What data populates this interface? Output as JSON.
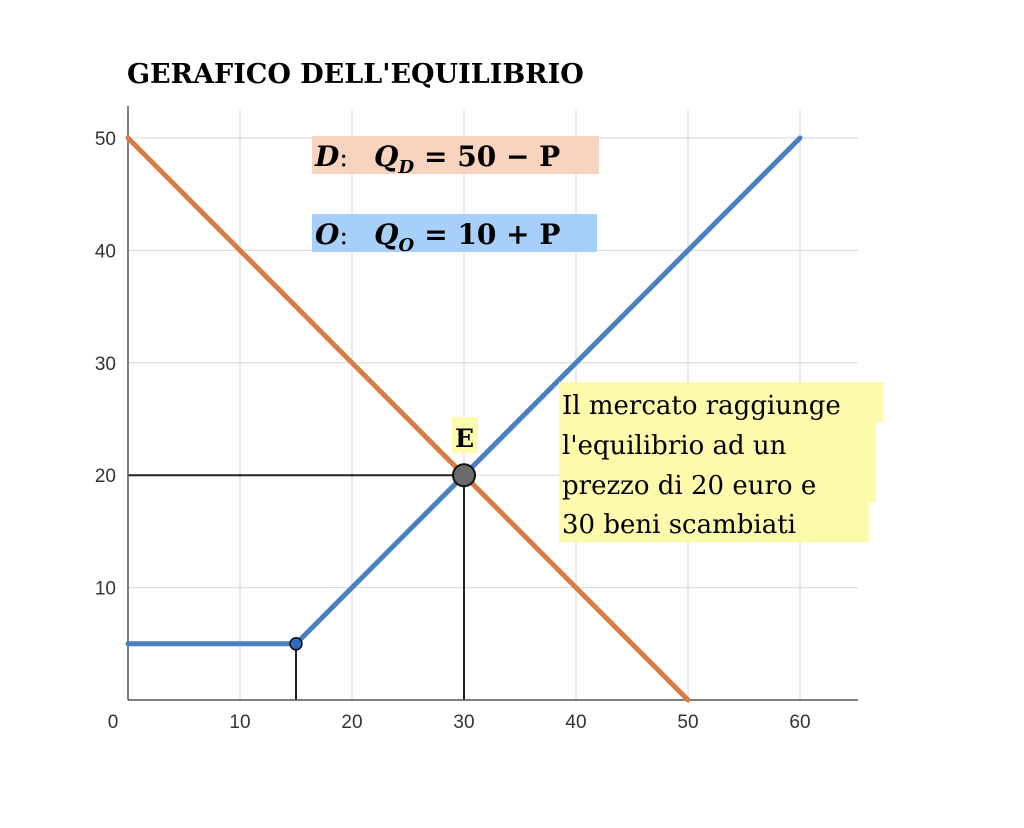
{
  "chart_data": {
    "type": "line",
    "title": "GERAFICO DELL'EQUILIBRIO",
    "xlim": [
      0,
      65
    ],
    "ylim": [
      0,
      50
    ],
    "x_ticks": [
      0,
      10,
      20,
      30,
      40,
      50,
      60
    ],
    "y_ticks": [
      10,
      20,
      30,
      40,
      50
    ],
    "grid": true,
    "series": [
      {
        "name": "D",
        "color": "#d97b45",
        "points": [
          [
            0,
            50
          ],
          [
            50,
            0
          ]
        ]
      },
      {
        "name": "O",
        "color": "#4a7fc1",
        "points": [
          [
            0,
            5
          ],
          [
            15,
            5
          ],
          [
            60,
            50
          ]
        ]
      }
    ],
    "equations": [
      {
        "series": "D",
        "lhs": "D",
        "sep": ":",
        "q": "Q",
        "sub": "D",
        "rhs": "= 50 − P",
        "bg": "#f8d3bd"
      },
      {
        "series": "O",
        "lhs": "O",
        "sep": ":",
        "q": "Q",
        "sub": "O",
        "rhs": "= 10 + P",
        "bg": "#a6cffa"
      }
    ],
    "equilibrium": {
      "label": "E",
      "x": 30,
      "y": 20
    },
    "kink": {
      "x": 15,
      "y": 5
    },
    "annotation": {
      "lines": [
        "Il mercato raggiunge",
        "l'equilibrio ad un",
        "prezzo di 20 euro e",
        "30 beni scambiati"
      ],
      "bg": "#fdfaab"
    }
  }
}
